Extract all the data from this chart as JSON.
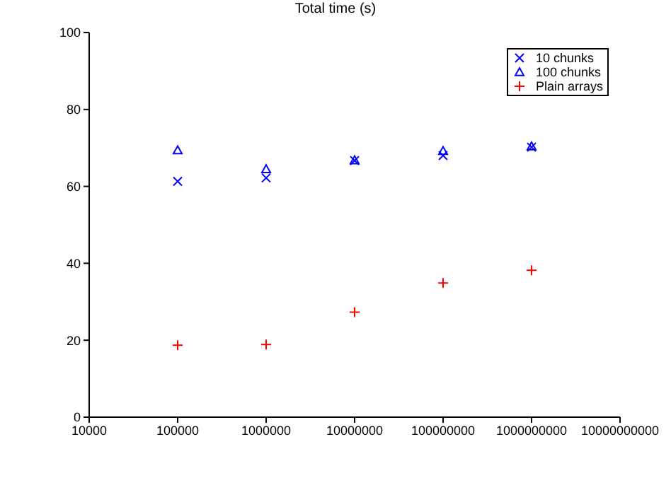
{
  "chart_data": {
    "type": "scatter",
    "title": "Total time (s)",
    "x": [
      100000,
      1000000,
      10000000,
      100000000,
      1000000000
    ],
    "series": [
      {
        "name": "10 chunks",
        "color": "#0000ff",
        "marker": "cross",
        "values": [
          61.3,
          62.2,
          66.7,
          68,
          70.2
        ]
      },
      {
        "name": "100 chunks",
        "color": "#0000ff",
        "marker": "triangle",
        "values": [
          69.4,
          64.5,
          66.8,
          69.2,
          70.4
        ]
      },
      {
        "name": "Plain arrays",
        "color": "#ff0000",
        "marker": "plus",
        "values": [
          18.7,
          18.9,
          27.3,
          34.9,
          38.2
        ]
      }
    ],
    "log": "x",
    "xlim": [
      10000,
      10000000000
    ],
    "xticks": [
      10000,
      100000,
      1000000,
      10000000,
      100000000,
      1000000000,
      10000000000
    ],
    "ylim": [
      0,
      100
    ],
    "yticks": [
      0,
      20,
      40,
      60,
      80,
      100
    ],
    "grid": false,
    "legend": "top right"
  }
}
